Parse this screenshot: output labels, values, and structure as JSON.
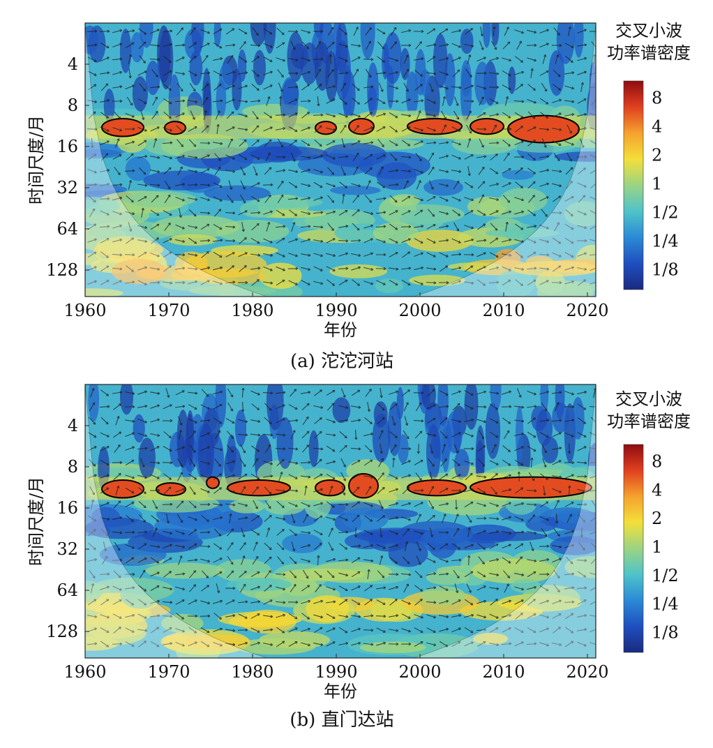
{
  "chart_data": [
    {
      "type": "heatmap",
      "subtitle": "(a) 沱沱河站",
      "xlabel": "年份",
      "ylabel": "时间尺度/月",
      "x_ticks": [
        1960,
        1970,
        1980,
        1990,
        2000,
        2010,
        2020
      ],
      "xlim": [
        1960,
        2021
      ],
      "y_ticks": [
        4,
        8,
        16,
        32,
        64,
        128
      ],
      "ylim": [
        2,
        200
      ],
      "y_scale": "log2",
      "colorbar_title_lines": [
        "交叉小波",
        "功率谱密度"
      ],
      "colorbar_ticks": [
        "8",
        "4",
        "2",
        "1",
        "1/2",
        "1/4",
        "1/8"
      ],
      "colorbar_values": [
        8,
        4,
        2,
        1,
        0.5,
        0.25,
        0.125
      ],
      "colormap": [
        "#1a2a80",
        "#1f4fbf",
        "#2b8ad6",
        "#4fc3c9",
        "#9bd483",
        "#f3df39",
        "#f5a22d",
        "#e0401f",
        "#8f0c12"
      ],
      "significant_regions": [
        {
          "x": [
            1962,
            1967
          ],
          "period": [
            10,
            13.5
          ]
        },
        {
          "x": [
            1969.5,
            1972
          ],
          "period": [
            10.5,
            13
          ]
        },
        {
          "x": [
            1987.5,
            1990
          ],
          "period": [
            10.5,
            13
          ]
        },
        {
          "x": [
            1991.5,
            1994.5
          ],
          "period": [
            10,
            13
          ]
        },
        {
          "x": [
            1998.5,
            2005
          ],
          "period": [
            10,
            13
          ]
        },
        {
          "x": [
            2006,
            2010
          ],
          "period": [
            10,
            13
          ]
        },
        {
          "x": [
            2010.5,
            2019
          ],
          "period": [
            9.5,
            15
          ]
        }
      ]
    },
    {
      "type": "heatmap",
      "subtitle": "(b) 直门达站",
      "xlabel": "年份",
      "ylabel": "时间尺度/月",
      "x_ticks": [
        1960,
        1970,
        1980,
        1990,
        2000,
        2010,
        2020
      ],
      "xlim": [
        1960,
        2021
      ],
      "y_ticks": [
        4,
        8,
        16,
        32,
        64,
        128
      ],
      "ylim": [
        2,
        200
      ],
      "y_scale": "log2",
      "colorbar_title_lines": [
        "交叉小波",
        "功率谱密度"
      ],
      "colorbar_ticks": [
        "8",
        "4",
        "2",
        "1",
        "1/2",
        "1/4",
        "1/8"
      ],
      "colorbar_values": [
        8,
        4,
        2,
        1,
        0.5,
        0.25,
        0.125
      ],
      "colormap": [
        "#1a2a80",
        "#1f4fbf",
        "#2b8ad6",
        "#4fc3c9",
        "#9bd483",
        "#f3df39",
        "#f5a22d",
        "#e0401f",
        "#8f0c12"
      ],
      "significant_regions": [
        {
          "x": [
            1962,
            1967
          ],
          "period": [
            10,
            13.5
          ]
        },
        {
          "x": [
            1968.5,
            1972
          ],
          "period": [
            10.5,
            13
          ]
        },
        {
          "x": [
            1974.5,
            1976
          ],
          "period": [
            9.5,
            11.5
          ]
        },
        {
          "x": [
            1977,
            1984.5
          ],
          "period": [
            10,
            13
          ]
        },
        {
          "x": [
            1987.5,
            1991
          ],
          "period": [
            10,
            13
          ]
        },
        {
          "x": [
            1991.5,
            1995
          ],
          "period": [
            9,
            13.5
          ]
        },
        {
          "x": [
            1998.5,
            2005.5
          ],
          "period": [
            10,
            13
          ]
        },
        {
          "x": [
            2006,
            2020.5
          ],
          "period": [
            9.5,
            13.5
          ]
        }
      ]
    }
  ]
}
